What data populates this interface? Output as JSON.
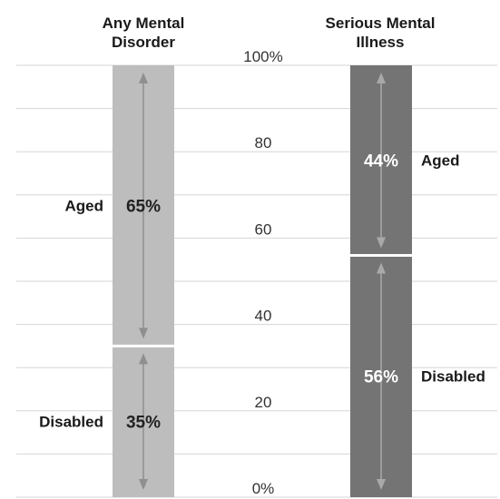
{
  "chart_data": {
    "type": "bar",
    "stacked": true,
    "normalized_percent": true,
    "ylim": [
      0,
      100
    ],
    "ytick_labels": [
      "0%",
      "20",
      "40",
      "60",
      "80",
      "100%"
    ],
    "yticks": [
      0,
      20,
      40,
      60,
      80,
      100
    ],
    "grid": true,
    "categories": [
      "Any Mental Disorder",
      "Serious Mental Illness"
    ],
    "category_titles": [
      [
        "Any Mental",
        "Disorder"
      ],
      [
        "Serious Mental",
        "Illness"
      ]
    ],
    "series": [
      {
        "name": "Disabled",
        "values": [
          35,
          56
        ]
      },
      {
        "name": "Aged",
        "values": [
          65,
          44
        ]
      }
    ],
    "data_labels": [
      [
        "35%",
        "65%"
      ],
      [
        "56%",
        "44%"
      ]
    ],
    "colors": {
      "bar_light": "#bdbdbd",
      "bar_dark": "#747474",
      "arrow_light": "#8f8f8f",
      "arrow_dark": "#a9a9a9",
      "value_text_light": "#222222",
      "value_text_dark": "#ffffff",
      "grid": "#d6d6d6"
    }
  }
}
